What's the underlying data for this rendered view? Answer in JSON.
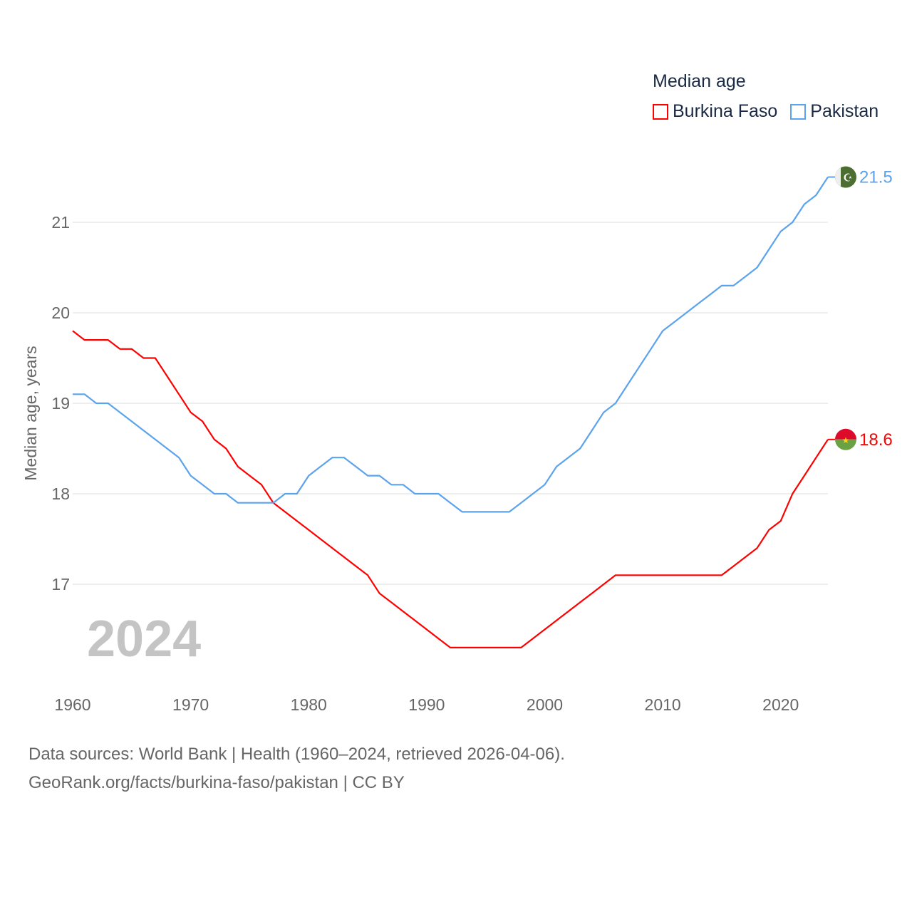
{
  "chart_data": {
    "type": "line",
    "title": "Median age",
    "ylabel": "Median age, years",
    "xlabel": "",
    "xlim": [
      1960,
      2024
    ],
    "ylim": [
      16,
      22
    ],
    "yticks": [
      17,
      18,
      19,
      20,
      21
    ],
    "xticks": [
      1960,
      1970,
      1980,
      1990,
      2000,
      2010,
      2020
    ],
    "grid": true,
    "legend_placement": "top-right",
    "year_watermark": "2024",
    "x": [
      1960,
      1961,
      1962,
      1963,
      1964,
      1965,
      1966,
      1967,
      1968,
      1969,
      1970,
      1971,
      1972,
      1973,
      1974,
      1975,
      1976,
      1977,
      1978,
      1979,
      1980,
      1981,
      1982,
      1983,
      1984,
      1985,
      1986,
      1987,
      1988,
      1989,
      1990,
      1991,
      1992,
      1993,
      1994,
      1995,
      1996,
      1997,
      1998,
      1999,
      2000,
      2001,
      2002,
      2003,
      2004,
      2005,
      2006,
      2007,
      2008,
      2009,
      2010,
      2011,
      2012,
      2013,
      2014,
      2015,
      2016,
      2017,
      2018,
      2019,
      2020,
      2021,
      2022,
      2023,
      2024
    ],
    "series": [
      {
        "name": "Burkina Faso",
        "color": "#ff0000",
        "end_label": "18.6",
        "values": [
          19.8,
          19.7,
          19.7,
          19.7,
          19.6,
          19.6,
          19.5,
          19.5,
          19.3,
          19.1,
          18.9,
          18.8,
          18.6,
          18.5,
          18.3,
          18.2,
          18.1,
          17.9,
          17.8,
          17.7,
          17.6,
          17.5,
          17.4,
          17.3,
          17.2,
          17.1,
          16.9,
          16.8,
          16.7,
          16.6,
          16.5,
          16.4,
          16.3,
          16.3,
          16.3,
          16.3,
          16.3,
          16.3,
          16.3,
          16.4,
          16.5,
          16.6,
          16.7,
          16.8,
          16.9,
          17.0,
          17.1,
          17.1,
          17.1,
          17.1,
          17.1,
          17.1,
          17.1,
          17.1,
          17.1,
          17.1,
          17.2,
          17.3,
          17.4,
          17.6,
          17.7,
          18.0,
          18.2,
          18.4,
          18.6
        ]
      },
      {
        "name": "Pakistan",
        "color": "#5ba3ec",
        "end_label": "21.5",
        "values": [
          19.1,
          19.1,
          19.0,
          19.0,
          18.9,
          18.8,
          18.7,
          18.6,
          18.5,
          18.4,
          18.2,
          18.1,
          18.0,
          18.0,
          17.9,
          17.9,
          17.9,
          17.9,
          18.0,
          18.0,
          18.2,
          18.3,
          18.4,
          18.4,
          18.3,
          18.2,
          18.2,
          18.1,
          18.1,
          18.0,
          18.0,
          18.0,
          17.9,
          17.8,
          17.8,
          17.8,
          17.8,
          17.8,
          17.9,
          18.0,
          18.1,
          18.3,
          18.4,
          18.5,
          18.7,
          18.9,
          19.0,
          19.2,
          19.4,
          19.6,
          19.8,
          19.9,
          20.0,
          20.1,
          20.2,
          20.3,
          20.3,
          20.4,
          20.5,
          20.7,
          20.9,
          21.0,
          21.2,
          21.3,
          21.5
        ]
      }
    ]
  },
  "source_line1": "Data sources: World Bank | Health (1960–2024, retrieved 2026-04-06).",
  "source_line2": "GeoRank.org/facts/burkina-faso/pakistan | CC BY"
}
